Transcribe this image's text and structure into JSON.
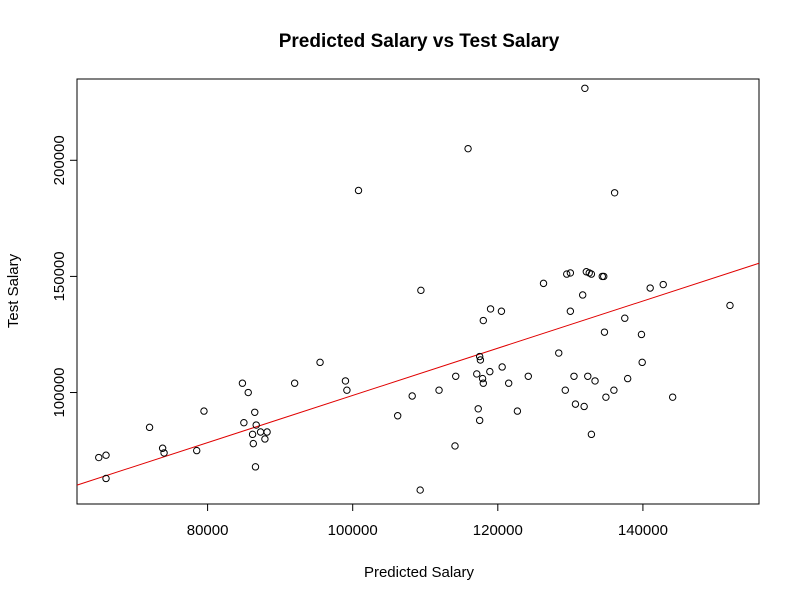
{
  "chart_data": {
    "type": "scatter",
    "title": "Predicted Salary vs Test Salary",
    "xlabel": "Predicted Salary",
    "ylabel": "Test Salary",
    "xlim": [
      62000,
      156000
    ],
    "ylim": [
      52000,
      235000
    ],
    "x_ticks": [
      80000,
      100000,
      120000,
      140000
    ],
    "x_tick_labels": [
      "80000",
      "100000",
      "120000",
      "140000"
    ],
    "y_ticks": [
      100000,
      150000,
      200000
    ],
    "y_tick_labels": [
      "100000",
      "150000",
      "200000"
    ],
    "grid": false,
    "point_color": "#000000",
    "fit_line": {
      "color": "#e00000",
      "intercept": -2880,
      "slope": 1.0163
    },
    "points": [
      {
        "x": 65000,
        "y": 72000
      },
      {
        "x": 66000,
        "y": 73000
      },
      {
        "x": 66000,
        "y": 63000
      },
      {
        "x": 72000,
        "y": 85000
      },
      {
        "x": 73800,
        "y": 76000
      },
      {
        "x": 74000,
        "y": 74000
      },
      {
        "x": 78500,
        "y": 75000
      },
      {
        "x": 79500,
        "y": 92000
      },
      {
        "x": 84800,
        "y": 104000
      },
      {
        "x": 85000,
        "y": 87000
      },
      {
        "x": 85600,
        "y": 100000
      },
      {
        "x": 86200,
        "y": 82000
      },
      {
        "x": 86300,
        "y": 78000
      },
      {
        "x": 86500,
        "y": 91500
      },
      {
        "x": 86700,
        "y": 86000
      },
      {
        "x": 86600,
        "y": 68000
      },
      {
        "x": 87300,
        "y": 83000
      },
      {
        "x": 87900,
        "y": 80000
      },
      {
        "x": 88200,
        "y": 83000
      },
      {
        "x": 92000,
        "y": 104000
      },
      {
        "x": 95500,
        "y": 113000
      },
      {
        "x": 99000,
        "y": 105000
      },
      {
        "x": 99200,
        "y": 101000
      },
      {
        "x": 100800,
        "y": 187000
      },
      {
        "x": 106200,
        "y": 90000
      },
      {
        "x": 108200,
        "y": 98500
      },
      {
        "x": 109400,
        "y": 144000
      },
      {
        "x": 109300,
        "y": 58000
      },
      {
        "x": 111900,
        "y": 101000
      },
      {
        "x": 114100,
        "y": 77000
      },
      {
        "x": 114200,
        "y": 107000
      },
      {
        "x": 115900,
        "y": 205000
      },
      {
        "x": 117100,
        "y": 108000
      },
      {
        "x": 117300,
        "y": 93000
      },
      {
        "x": 117500,
        "y": 88000
      },
      {
        "x": 117500,
        "y": 115500
      },
      {
        "x": 117600,
        "y": 114000
      },
      {
        "x": 117900,
        "y": 106000
      },
      {
        "x": 118000,
        "y": 104000
      },
      {
        "x": 118000,
        "y": 131000
      },
      {
        "x": 118900,
        "y": 109000
      },
      {
        "x": 119000,
        "y": 136000
      },
      {
        "x": 120500,
        "y": 135000
      },
      {
        "x": 120600,
        "y": 111000
      },
      {
        "x": 121500,
        "y": 104000
      },
      {
        "x": 122700,
        "y": 92000
      },
      {
        "x": 124200,
        "y": 107000
      },
      {
        "x": 126300,
        "y": 147000
      },
      {
        "x": 128400,
        "y": 117000
      },
      {
        "x": 129300,
        "y": 101000
      },
      {
        "x": 129500,
        "y": 151000
      },
      {
        "x": 130000,
        "y": 151500
      },
      {
        "x": 130000,
        "y": 135000
      },
      {
        "x": 130500,
        "y": 107000
      },
      {
        "x": 130700,
        "y": 95000
      },
      {
        "x": 131700,
        "y": 142000
      },
      {
        "x": 131900,
        "y": 94000
      },
      {
        "x": 132000,
        "y": 231000
      },
      {
        "x": 132200,
        "y": 152000
      },
      {
        "x": 132400,
        "y": 107000
      },
      {
        "x": 132600,
        "y": 151500
      },
      {
        "x": 132900,
        "y": 151000
      },
      {
        "x": 132900,
        "y": 82000
      },
      {
        "x": 133400,
        "y": 105000
      },
      {
        "x": 134400,
        "y": 150000
      },
      {
        "x": 134600,
        "y": 150000
      },
      {
        "x": 134700,
        "y": 126000
      },
      {
        "x": 134900,
        "y": 98000
      },
      {
        "x": 136000,
        "y": 101000
      },
      {
        "x": 136100,
        "y": 186000
      },
      {
        "x": 137500,
        "y": 132000
      },
      {
        "x": 137900,
        "y": 106000
      },
      {
        "x": 139800,
        "y": 125000
      },
      {
        "x": 139900,
        "y": 113000
      },
      {
        "x": 141000,
        "y": 145000
      },
      {
        "x": 142800,
        "y": 146500
      },
      {
        "x": 144100,
        "y": 98000
      },
      {
        "x": 152000,
        "y": 137500
      }
    ]
  }
}
